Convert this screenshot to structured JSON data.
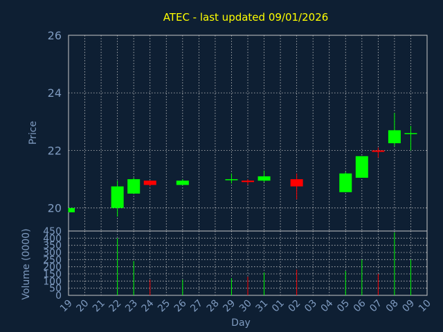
{
  "chart_data": {
    "type": "candlestick",
    "title": "ATEC - last updated 09/01/2026",
    "xlabel": "Day",
    "price_panel": {
      "ylabel": "Price",
      "ylim": [
        19.2,
        26.0
      ],
      "yticks": [
        20,
        22,
        24,
        26
      ],
      "grid": true
    },
    "volume_panel": {
      "ylabel": "Volume (0000)",
      "ylim": [
        0,
        450
      ],
      "yticks": [
        0,
        50,
        100,
        150,
        200,
        250,
        300,
        350,
        400,
        450
      ],
      "grid": true
    },
    "x_tick_labels": [
      "19",
      "20",
      "21",
      "22",
      "23",
      "24",
      "25",
      "26",
      "27",
      "28",
      "29",
      "30",
      "31",
      "01",
      "02",
      "03",
      "04",
      "05",
      "06",
      "07",
      "08",
      "09",
      "10"
    ],
    "up_color": "#00ff00",
    "down_color": "#ff0000",
    "background": "#0e1f33",
    "candles": [
      {
        "day": "19",
        "open": 19.85,
        "high": 20.0,
        "low": 19.85,
        "close": 20.0,
        "volume": 0
      },
      {
        "day": "22",
        "open": 20.0,
        "high": 20.95,
        "low": 19.7,
        "close": 20.75,
        "volume": 400
      },
      {
        "day": "23",
        "open": 20.5,
        "high": 21.05,
        "low": 20.5,
        "close": 21.0,
        "volume": 240
      },
      {
        "day": "24",
        "open": 20.95,
        "high": 20.95,
        "low": 20.75,
        "close": 20.8,
        "volume": 110
      },
      {
        "day": "26",
        "open": 20.8,
        "high": 21.0,
        "low": 20.8,
        "close": 20.95,
        "volume": 110
      },
      {
        "day": "29",
        "open": 21.0,
        "high": 21.2,
        "low": 20.85,
        "close": 21.0,
        "volume": 120
      },
      {
        "day": "30",
        "open": 20.95,
        "high": 21.0,
        "low": 20.8,
        "close": 20.9,
        "volume": 130
      },
      {
        "day": "31",
        "open": 20.95,
        "high": 21.3,
        "low": 20.9,
        "close": 21.1,
        "volume": 160
      },
      {
        "day": "02",
        "open": 21.0,
        "high": 21.2,
        "low": 20.3,
        "close": 20.75,
        "volume": 180
      },
      {
        "day": "05",
        "open": 20.55,
        "high": 21.25,
        "low": 20.55,
        "close": 21.2,
        "volume": 170
      },
      {
        "day": "06",
        "open": 21.05,
        "high": 21.8,
        "low": 21.05,
        "close": 21.8,
        "volume": 250
      },
      {
        "day": "07",
        "open": 22.0,
        "high": 22.1,
        "low": 21.75,
        "close": 21.95,
        "volume": 150
      },
      {
        "day": "08",
        "open": 22.25,
        "high": 23.3,
        "low": 22.15,
        "close": 22.7,
        "volume": 440
      },
      {
        "day": "09",
        "open": 22.6,
        "high": 22.85,
        "low": 22.0,
        "close": 22.6,
        "volume": 250
      }
    ]
  }
}
